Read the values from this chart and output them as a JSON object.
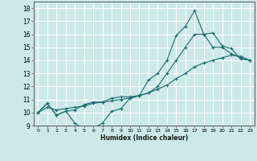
{
  "xlabel": "Humidex (Indice chaleur)",
  "ylabel": "",
  "xlim": [
    -0.5,
    23.5
  ],
  "ylim": [
    9,
    18.5
  ],
  "yticks": [
    9,
    10,
    11,
    12,
    13,
    14,
    15,
    16,
    17,
    18
  ],
  "xticks": [
    0,
    1,
    2,
    3,
    4,
    5,
    6,
    7,
    8,
    9,
    10,
    11,
    12,
    13,
    14,
    15,
    16,
    17,
    18,
    19,
    20,
    21,
    22,
    23
  ],
  "background_color": "#cce8e8",
  "grid_color": "#ffffff",
  "line_color": "#1a6b6b",
  "lines": [
    [
      10.0,
      10.7,
      9.8,
      10.1,
      9.2,
      8.7,
      8.8,
      9.2,
      10.1,
      10.3,
      11.1,
      11.3,
      12.5,
      13.0,
      14.0,
      15.9,
      16.6,
      17.8,
      16.0,
      16.1,
      15.1,
      14.9,
      14.1,
      14.0
    ],
    [
      10.0,
      10.7,
      9.8,
      10.1,
      10.2,
      10.6,
      10.8,
      10.8,
      11.1,
      11.2,
      11.2,
      11.3,
      11.5,
      12.0,
      13.0,
      14.0,
      15.0,
      16.0,
      16.0,
      15.0,
      15.0,
      14.5,
      14.2,
      14.0
    ],
    [
      10.0,
      10.4,
      10.2,
      10.3,
      10.4,
      10.5,
      10.7,
      10.8,
      10.9,
      11.0,
      11.1,
      11.3,
      11.5,
      11.8,
      12.1,
      12.6,
      13.0,
      13.5,
      13.8,
      14.0,
      14.2,
      14.4,
      14.3,
      14.0
    ]
  ]
}
